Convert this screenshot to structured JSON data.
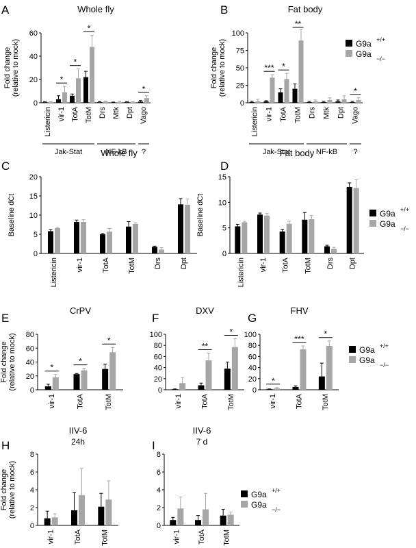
{
  "legend": {
    "wt_label": "G9a",
    "wt_sup": "+/+",
    "mut_label": "G9a",
    "mut_sup": "−/−",
    "wt_color": "#000000",
    "mut_color": "#a6a6a6"
  },
  "chart_data": [
    {
      "panel": "A",
      "title": "Whole fly",
      "type": "bar",
      "ylabel": [
        "Fold change",
        "(relative to mock)"
      ],
      "ylim": [
        0,
        60
      ],
      "yticks": [
        0,
        20,
        40,
        60
      ],
      "categories": [
        "Listericin",
        "vir-1",
        "TotA",
        "TotM",
        "Drs",
        "Mtk",
        "Dpt",
        "Vago"
      ],
      "series": [
        {
          "name": "G9a+/+",
          "values": [
            0.5,
            3,
            6,
            22,
            0.5,
            0.3,
            0.5,
            1
          ],
          "errors": [
            0.5,
            3,
            1.5,
            5,
            0.5,
            0.3,
            0.5,
            1
          ]
        },
        {
          "name": "G9a−/−",
          "values": [
            0.5,
            9,
            21,
            48,
            1,
            0.5,
            0.5,
            4
          ],
          "errors": [
            0.5,
            5,
            8,
            10,
            0.5,
            0.5,
            0.5,
            2
          ]
        }
      ],
      "signif": [
        {
          "cat": 1,
          "label": "*"
        },
        {
          "cat": 2,
          "label": "*"
        },
        {
          "cat": 3,
          "label": "*"
        },
        {
          "cat": 7,
          "label": "*"
        }
      ],
      "groups": [
        {
          "label": "Jak-Stat",
          "from": 0,
          "to": 3
        },
        {
          "label": "NF-kB",
          "from": 4,
          "to": 6
        },
        {
          "label": "?",
          "from": 7,
          "to": 7
        }
      ]
    },
    {
      "panel": "B",
      "title": "Fat body",
      "type": "bar",
      "ylabel": [
        "Fold change",
        "(relative to mock)"
      ],
      "ylim": [
        0,
        100
      ],
      "yticks": [
        0,
        25,
        50,
        75,
        100
      ],
      "categories": [
        "Listericin",
        "vir-1",
        "TotA",
        "TotM",
        "Drs",
        "Mtk",
        "Dpt",
        "Vago"
      ],
      "series": [
        {
          "name": "G9a+/+",
          "values": [
            1,
            2,
            15,
            20,
            1,
            1,
            2,
            1
          ],
          "errors": [
            1,
            1,
            5,
            7,
            1,
            1,
            2,
            1
          ]
        },
        {
          "name": "G9a−/−",
          "values": [
            2,
            36,
            34,
            89,
            2,
            4,
            5,
            4
          ],
          "errors": [
            3,
            4,
            8,
            16,
            2,
            3,
            5,
            3
          ]
        }
      ],
      "signif": [
        {
          "cat": 1,
          "label": "***"
        },
        {
          "cat": 2,
          "label": "*"
        },
        {
          "cat": 3,
          "label": "**"
        },
        {
          "cat": 7,
          "label": "*"
        }
      ],
      "groups": [
        {
          "label": "Jak-Stat",
          "from": 0,
          "to": 3
        },
        {
          "label": "NF-kB",
          "from": 4,
          "to": 6
        },
        {
          "label": "?",
          "from": 7,
          "to": 7
        }
      ]
    },
    {
      "panel": "C",
      "title": "Whole fly",
      "type": "bar",
      "ylabel": [
        "Baseline dCt"
      ],
      "ylim": [
        0,
        20
      ],
      "yticks": [
        0,
        5,
        10,
        15,
        20
      ],
      "categories": [
        "Listericin",
        "vir-1",
        "TotA",
        "TotM",
        "Drs",
        "Dpt"
      ],
      "series": [
        {
          "name": "G9a+/+",
          "values": [
            5.8,
            8.2,
            5,
            7,
            1.7,
            12.8
          ],
          "errors": [
            0.4,
            0.5,
            0.2,
            1.3,
            0.2,
            1.5
          ]
        },
        {
          "name": "G9a−/−",
          "values": [
            6.6,
            8.2,
            5.7,
            7.7,
            1,
            12.7
          ],
          "errors": [
            0.2,
            0.6,
            0.8,
            0.3,
            0.5,
            1.5
          ]
        }
      ],
      "signif": [],
      "groups": []
    },
    {
      "panel": "D",
      "title": "Fat body",
      "type": "bar",
      "ylabel": [
        "Baseline dCt"
      ],
      "ylim": [
        0,
        15
      ],
      "yticks": [
        0,
        5,
        10,
        15
      ],
      "categories": [
        "Listericin",
        "vir-1",
        "TotA",
        "TotM",
        "Drs",
        "Dpt"
      ],
      "series": [
        {
          "name": "G9a+/+",
          "values": [
            5.3,
            7.6,
            4.3,
            6.6,
            1.4,
            13
          ],
          "errors": [
            0.4,
            0.3,
            0.4,
            1.4,
            0.2,
            0.8
          ]
        },
        {
          "name": "G9a−/−",
          "values": [
            6.1,
            7.4,
            5.8,
            6.7,
            0.9,
            12.8
          ],
          "errors": [
            0.2,
            0.4,
            0.5,
            0.7,
            0.3,
            1.6
          ]
        }
      ],
      "signif": [],
      "groups": []
    },
    {
      "panel": "E",
      "title": "CrPV",
      "type": "bar",
      "ylabel": [
        "Fold change",
        "(relative to mock)"
      ],
      "ylim": [
        0,
        80
      ],
      "yticks": [
        0,
        20,
        40,
        60,
        80
      ],
      "categories": [
        "vir-1",
        "TotA",
        "TotM"
      ],
      "series": [
        {
          "name": "G9a+/+",
          "values": [
            5,
            22.5,
            30
          ],
          "errors": [
            3,
            1,
            7
          ]
        },
        {
          "name": "G9a−/−",
          "values": [
            18,
            28,
            54
          ],
          "errors": [
            4,
            3,
            7
          ]
        }
      ],
      "signif": [
        {
          "cat": 0,
          "label": "*"
        },
        {
          "cat": 1,
          "label": "*"
        },
        {
          "cat": 2,
          "label": "*"
        }
      ],
      "groups": []
    },
    {
      "panel": "F",
      "title": "DXV",
      "type": "bar",
      "ylabel": [],
      "ylim": [
        0,
        100
      ],
      "yticks": [
        0,
        20,
        40,
        60,
        80,
        100
      ],
      "categories": [
        "vir-1",
        "TotA",
        "TotM"
      ],
      "series": [
        {
          "name": "G9a+/+",
          "values": [
            1,
            8,
            38
          ],
          "errors": [
            0.5,
            4,
            12
          ]
        },
        {
          "name": "G9a−/−",
          "values": [
            12,
            53,
            77
          ],
          "errors": [
            10,
            13,
            15
          ]
        }
      ],
      "signif": [
        {
          "cat": 1,
          "label": "**"
        },
        {
          "cat": 2,
          "label": "*"
        }
      ],
      "groups": []
    },
    {
      "panel": "G",
      "title": "FHV",
      "type": "bar",
      "ylabel": [],
      "ylim": [
        0,
        100
      ],
      "yticks": [
        0,
        20,
        40,
        60,
        80,
        100
      ],
      "categories": [
        "vir-1",
        "TotA",
        "TotM"
      ],
      "series": [
        {
          "name": "G9a+/+",
          "values": [
            1,
            5,
            24
          ],
          "errors": [
            0.5,
            2,
            24
          ]
        },
        {
          "name": "G9a−/−",
          "values": [
            2.5,
            73,
            79
          ],
          "errors": [
            1.5,
            6,
            9
          ]
        }
      ],
      "signif": [
        {
          "cat": 0,
          "label": "*"
        },
        {
          "cat": 1,
          "label": "***"
        },
        {
          "cat": 2,
          "label": "*"
        }
      ],
      "groups": []
    },
    {
      "panel": "H",
      "title": "IIV-6",
      "subtitle": "24h",
      "type": "bar",
      "ylabel": [
        "Fold change",
        "(relative to mock)"
      ],
      "ylim": [
        0,
        8
      ],
      "yticks": [
        0,
        2,
        4,
        6,
        8
      ],
      "categories": [
        "vir-1",
        "TotA",
        "TotM"
      ],
      "series": [
        {
          "name": "G9a+/+",
          "values": [
            0.8,
            1.7,
            2.1
          ],
          "errors": [
            0.8,
            2,
            1.5
          ]
        },
        {
          "name": "G9a−/−",
          "values": [
            0.9,
            3.4,
            2.9
          ],
          "errors": [
            0.4,
            3,
            2.1
          ]
        }
      ],
      "signif": [],
      "groups": []
    },
    {
      "panel": "I",
      "title": "IIV-6",
      "subtitle": "7 d",
      "type": "bar",
      "ylabel": [],
      "ylim": [
        0,
        8
      ],
      "yticks": [
        0,
        2,
        4,
        6,
        8
      ],
      "categories": [
        "vir-1",
        "TotA",
        "TotM"
      ],
      "series": [
        {
          "name": "G9a+/+",
          "values": [
            0.6,
            0.6,
            1.1
          ],
          "errors": [
            0.3,
            0.5,
            0.7
          ]
        },
        {
          "name": "G9a−/−",
          "values": [
            1.9,
            1.8,
            1.2
          ],
          "errors": [
            1.3,
            1.8,
            0.3
          ]
        }
      ],
      "signif": [],
      "groups": []
    }
  ]
}
